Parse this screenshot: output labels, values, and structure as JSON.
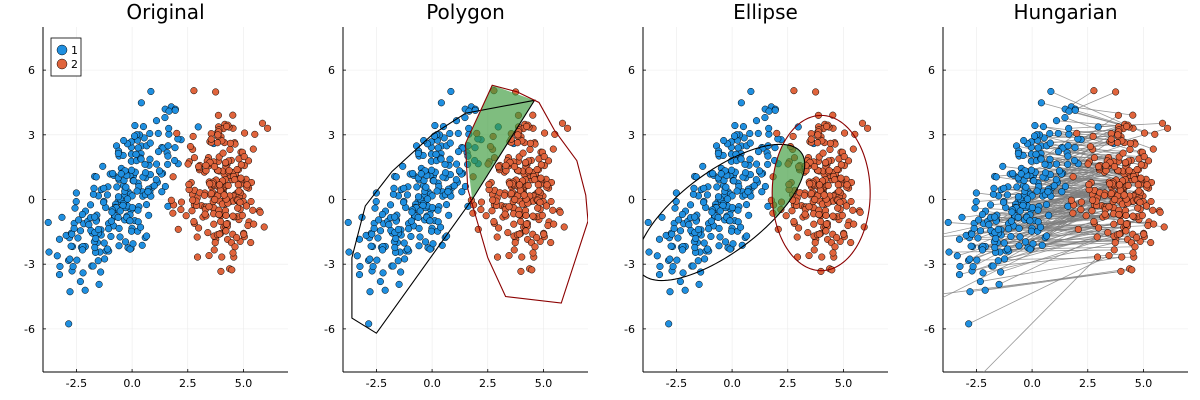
{
  "colors": {
    "series1": "#1f8fe0",
    "series2": "#e0643c",
    "hull1": "#000000",
    "hull2": "#8b0000",
    "overlap": "#3a9a3a",
    "grid": "#ebebeb",
    "link": "#808080"
  },
  "legend": {
    "entries": [
      "1",
      "2"
    ],
    "placement": "top-left"
  },
  "chart_data": [
    {
      "type": "scatter",
      "title": "Original",
      "xlim": [
        -4,
        7
      ],
      "ylim": [
        -8,
        8
      ],
      "xticks": [
        -2.5,
        0.0,
        2.5,
        5.0
      ],
      "xtick_labels": [
        "-2.5",
        "0.0",
        "2.5",
        "5.0"
      ],
      "yticks": [
        -6,
        -3,
        0,
        3,
        6
      ],
      "ytick_labels": [
        "-6",
        "-3",
        "0",
        "3",
        "6"
      ],
      "grid": true,
      "legend": true,
      "series": [
        {
          "name": "1",
          "color_key": "series1",
          "cluster": {
            "center": [
              -0.5,
              0
            ],
            "count": 250,
            "x_sd": 1.5,
            "y_sd": 2.1,
            "slope": 0.9
          }
        },
        {
          "name": "2",
          "color_key": "series2",
          "cluster": {
            "center": [
              4.0,
              0.4
            ],
            "count": 250,
            "x_sd": 0.95,
            "y_sd": 2.0,
            "slope": 0.0
          }
        }
      ]
    },
    {
      "type": "scatter",
      "title": "Polygon",
      "xlim": [
        -4,
        7
      ],
      "ylim": [
        -8,
        8
      ],
      "xticks": [
        -2.5,
        0.0,
        2.5,
        5.0
      ],
      "xtick_labels": [
        "-2.5",
        "0.0",
        "2.5",
        "5.0"
      ],
      "yticks": [
        -6,
        -3,
        0,
        3,
        6
      ],
      "ytick_labels": [
        "-6",
        "-3",
        "0",
        "3",
        "6"
      ],
      "grid": true,
      "legend": false,
      "overlay": "polygon",
      "hull1": [
        [
          -3.6,
          -5.5
        ],
        [
          -3.6,
          -2.7
        ],
        [
          -3.0,
          -0.3
        ],
        [
          -1.8,
          1.3
        ],
        [
          0,
          3.0
        ],
        [
          1.5,
          4.0
        ],
        [
          4.6,
          4.6
        ],
        [
          1.8,
          0
        ],
        [
          -2.5,
          -6.2
        ]
      ],
      "hull2": [
        [
          2.7,
          5.3
        ],
        [
          1.5,
          2.6
        ],
        [
          1.6,
          0.5
        ],
        [
          2.5,
          -2.7
        ],
        [
          3.3,
          -4.5
        ],
        [
          5.8,
          -4.8
        ],
        [
          7.0,
          -1.0
        ],
        [
          6.9,
          0.2
        ],
        [
          6.5,
          1.8
        ],
        [
          5.5,
          3.2
        ],
        [
          4.8,
          4.5
        ],
        [
          3.8,
          5.0
        ]
      ],
      "overlap_region": [
        [
          2.7,
          5.3
        ],
        [
          4.6,
          4.6
        ],
        [
          1.8,
          0
        ],
        [
          1.5,
          2.6
        ]
      ]
    },
    {
      "type": "scatter",
      "title": "Ellipse",
      "xlim": [
        -4,
        7
      ],
      "ylim": [
        -8,
        8
      ],
      "xticks": [
        -2.5,
        0.0,
        2.5,
        5.0
      ],
      "xtick_labels": [
        "-2.5",
        "0.0",
        "2.5",
        "5.0"
      ],
      "yticks": [
        -6,
        -3,
        0,
        3,
        6
      ],
      "ytick_labels": [
        "-6",
        "-3",
        "0",
        "3",
        "6"
      ],
      "grid": true,
      "legend": false,
      "overlay": "ellipse",
      "ellipse1": {
        "center": [
          -0.5,
          -0.6
        ],
        "rx": 4.55,
        "ry": 1.85,
        "angle_deg": 38
      },
      "ellipse2": {
        "center": [
          4.0,
          0.3
        ],
        "rx": 2.2,
        "ry": 3.6,
        "angle_deg": 0
      }
    },
    {
      "type": "scatter",
      "title": "Hungarian",
      "xlim": [
        -4,
        7
      ],
      "ylim": [
        -8,
        8
      ],
      "xticks": [
        -2.5,
        0.0,
        2.5,
        5.0
      ],
      "xtick_labels": [
        "-2.5",
        "0.0",
        "2.5",
        "5.0"
      ],
      "yticks": [
        -6,
        -3,
        0,
        3,
        6
      ],
      "ytick_labels": [
        "-6",
        "-3",
        "0",
        "3",
        "6"
      ],
      "grid": true,
      "legend": false,
      "overlay": "matching_lines"
    }
  ]
}
